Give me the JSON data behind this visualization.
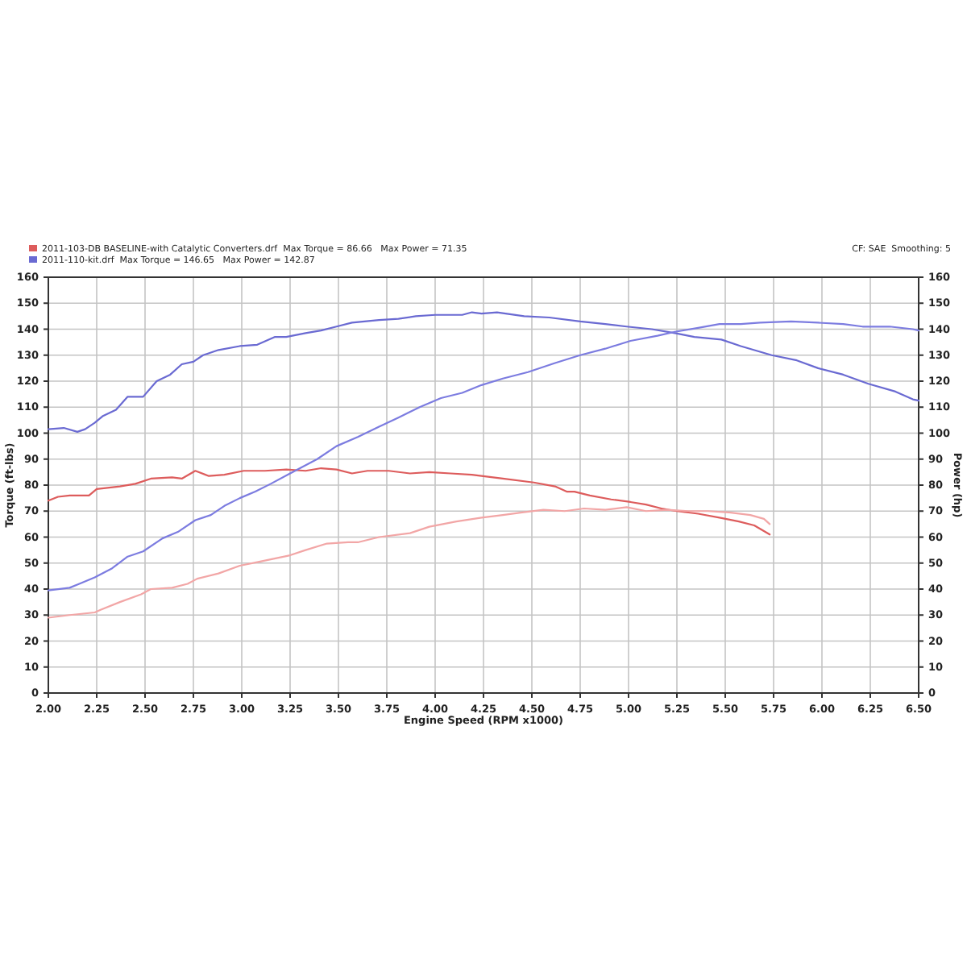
{
  "chart_data": {
    "type": "line",
    "xlabel": "Engine Speed (RPM x1000)",
    "ylabel": "Torque (ft-lbs)",
    "y2label": "Power (hp)",
    "xlim": [
      2,
      6.5
    ],
    "xticks": [
      {
        "value": 2,
        "label": "2.00"
      },
      {
        "value": 2.25,
        "label": "2.25"
      },
      {
        "value": 2.5,
        "label": "2.50"
      },
      {
        "value": 2.75,
        "label": "2.75"
      },
      {
        "value": 3,
        "label": "3.00"
      },
      {
        "value": 3.25,
        "label": "3.25"
      },
      {
        "value": 3.5,
        "label": "3.50"
      },
      {
        "value": 3.75,
        "label": "3.75"
      },
      {
        "value": 4,
        "label": "4.00"
      },
      {
        "value": 4.25,
        "label": "4.25"
      },
      {
        "value": 4.5,
        "label": "4.50"
      },
      {
        "value": 4.75,
        "label": "4.75"
      },
      {
        "value": 5,
        "label": "5.00"
      },
      {
        "value": 5.25,
        "label": "5.25"
      },
      {
        "value": 5.5,
        "label": "5.50"
      },
      {
        "value": 5.75,
        "label": "5.75"
      },
      {
        "value": 6,
        "label": "6.00"
      },
      {
        "value": 6.25,
        "label": "6.25"
      },
      {
        "value": 6.5,
        "label": "6.50"
      }
    ],
    "ylim": [
      0,
      160
    ],
    "yticks": [
      0,
      10,
      20,
      30,
      40,
      50,
      60,
      70,
      80,
      90,
      100,
      110,
      120,
      130,
      140,
      150,
      160
    ],
    "y2lim": [
      0,
      160
    ],
    "y2ticks": [
      0,
      10,
      20,
      30,
      40,
      50,
      60,
      70,
      80,
      90,
      100,
      110,
      120,
      130,
      140,
      150,
      160
    ],
    "grid": true,
    "legend": "top left",
    "annotations": [
      "CF: SAE  Smoothing: 5"
    ],
    "series": [
      {
        "name": "2011-103-DB BASELINE-with Catalytic Converters.drf  Max Torque = 86.66   Max Power = 71.35",
        "color": "#dd5c5c",
        "x": [
          2.0,
          2.05,
          2.11,
          2.21,
          2.25,
          2.37,
          2.45,
          2.53,
          2.64,
          2.69,
          2.76,
          2.83,
          2.91,
          3.01,
          3.12,
          3.23,
          3.33,
          3.41,
          3.49,
          3.57,
          3.65,
          3.76,
          3.87,
          3.97,
          4.08,
          4.19,
          4.24,
          4.35,
          4.51,
          4.62,
          4.68,
          4.72,
          4.8,
          4.91,
          5.01,
          5.09,
          5.17,
          5.25,
          5.36,
          5.47,
          5.57,
          5.65,
          5.73
        ],
        "values": [
          74,
          75.5,
          76,
          76,
          78.5,
          79.5,
          80.5,
          82.5,
          83,
          82.5,
          85.5,
          83.5,
          84,
          85.5,
          85.5,
          86,
          85.5,
          86.5,
          86,
          84.5,
          85.5,
          85.5,
          84.5,
          85,
          84.5,
          84,
          83.5,
          82.5,
          81,
          79.5,
          77.5,
          77.5,
          76,
          74.5,
          73.5,
          72.5,
          71,
          70,
          69,
          67.5,
          66,
          64.5,
          61
        ]
      },
      {
        "color": "#f2a6a6",
        "x": [
          2.0,
          2.11,
          2.24,
          2.27,
          2.37,
          2.48,
          2.53,
          2.64,
          2.72,
          2.77,
          2.88,
          2.99,
          3.09,
          3.25,
          3.33,
          3.44,
          3.55,
          3.6,
          3.71,
          3.87,
          3.97,
          4.11,
          4.24,
          4.35,
          4.45,
          4.56,
          4.67,
          4.77,
          4.88,
          4.99,
          5.09,
          5.2,
          5.31,
          5.41,
          5.52,
          5.63,
          5.7,
          5.73
        ],
        "values": [
          29,
          30,
          31,
          32,
          35,
          38,
          40,
          40.5,
          42,
          44,
          46,
          49,
          50.5,
          53,
          55,
          57.5,
          58,
          58,
          60,
          61.5,
          64,
          66,
          67.5,
          68.5,
          69.5,
          70.5,
          70,
          71,
          70.5,
          71.5,
          70,
          70.5,
          70,
          70,
          69.5,
          68.5,
          67,
          65
        ]
      },
      {
        "name": "2011-110-kit.drf  Max Torque = 146.65   Max Power = 142.87",
        "color": "#6a6ad2",
        "x": [
          2.0,
          2.08,
          2.15,
          2.19,
          2.24,
          2.28,
          2.35,
          2.41,
          2.49,
          2.56,
          2.63,
          2.69,
          2.75,
          2.8,
          2.88,
          2.99,
          3.08,
          3.17,
          3.23,
          3.33,
          3.41,
          3.49,
          3.57,
          3.71,
          3.81,
          3.9,
          4.0,
          4.14,
          4.19,
          4.24,
          4.32,
          4.46,
          4.59,
          4.75,
          4.88,
          4.99,
          5.12,
          5.24,
          5.34,
          5.48,
          5.58,
          5.74,
          5.87,
          5.98,
          6.11,
          6.24,
          6.38,
          6.47,
          6.5
        ],
        "values": [
          101.5,
          102,
          100.5,
          101.5,
          104,
          106.5,
          109,
          114,
          114,
          120,
          122.5,
          126.5,
          127.5,
          130,
          132,
          133.5,
          134,
          137,
          137,
          138.5,
          139.5,
          141,
          142.5,
          143.5,
          144,
          145,
          145.5,
          145.5,
          146.5,
          146,
          146.5,
          145,
          144.5,
          143,
          142,
          141,
          140,
          138.5,
          137,
          136,
          133.5,
          130,
          128,
          125,
          122.5,
          119,
          116,
          113,
          112.5
        ]
      },
      {
        "color": "#7c7ce0",
        "x": [
          2.0,
          2.11,
          2.16,
          2.24,
          2.33,
          2.41,
          2.49,
          2.59,
          2.67,
          2.76,
          2.84,
          2.91,
          2.99,
          3.07,
          3.15,
          3.25,
          3.39,
          3.49,
          3.6,
          3.71,
          3.81,
          3.92,
          4.03,
          4.14,
          4.24,
          4.35,
          4.48,
          4.62,
          4.75,
          4.88,
          5.01,
          5.15,
          5.24,
          5.36,
          5.47,
          5.58,
          5.68,
          5.84,
          5.98,
          6.11,
          6.21,
          6.35,
          6.47,
          6.5
        ],
        "values": [
          39.5,
          40.5,
          42,
          44.5,
          48,
          52.5,
          54.5,
          59.5,
          62,
          66.5,
          68.5,
          72,
          75,
          77.5,
          80.5,
          84.5,
          90,
          95,
          98.5,
          102.5,
          106,
          110,
          113.5,
          115.5,
          118.5,
          121,
          123.5,
          127,
          130,
          132.5,
          135.5,
          137.5,
          139,
          140.5,
          142,
          142,
          142.5,
          143,
          142.5,
          142,
          141,
          141,
          140,
          139.5
        ]
      }
    ]
  }
}
